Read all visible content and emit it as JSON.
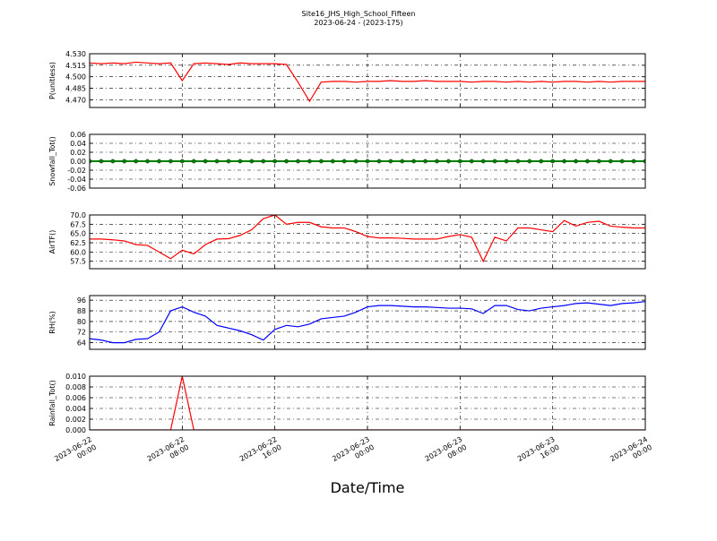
{
  "title": "Site16_JHS_High_School_Fifteen",
  "subtitle": "2023-06-24 - (2023-175)",
  "xlabel": "Date/Time",
  "x": [
    "2023-06-22 00:00",
    "2023-06-22 01:00",
    "2023-06-22 02:00",
    "2023-06-22 03:00",
    "2023-06-22 04:00",
    "2023-06-22 05:00",
    "2023-06-22 06:00",
    "2023-06-22 07:00",
    "2023-06-22 08:00",
    "2023-06-22 09:00",
    "2023-06-22 10:00",
    "2023-06-22 11:00",
    "2023-06-22 12:00",
    "2023-06-22 13:00",
    "2023-06-22 14:00",
    "2023-06-22 15:00",
    "2023-06-22 16:00",
    "2023-06-22 17:00",
    "2023-06-22 18:00",
    "2023-06-22 19:00",
    "2023-06-22 20:00",
    "2023-06-22 21:00",
    "2023-06-22 22:00",
    "2023-06-22 23:00",
    "2023-06-23 00:00",
    "2023-06-23 01:00",
    "2023-06-23 02:00",
    "2023-06-23 03:00",
    "2023-06-23 04:00",
    "2023-06-23 05:00",
    "2023-06-23 06:00",
    "2023-06-23 07:00",
    "2023-06-23 08:00",
    "2023-06-23 09:00",
    "2023-06-23 10:00",
    "2023-06-23 11:00",
    "2023-06-23 12:00",
    "2023-06-23 13:00",
    "2023-06-23 14:00",
    "2023-06-23 15:00",
    "2023-06-23 16:00",
    "2023-06-23 17:00",
    "2023-06-23 18:00",
    "2023-06-23 19:00",
    "2023-06-23 20:00",
    "2023-06-23 21:00",
    "2023-06-23 22:00",
    "2023-06-23 23:00",
    "2023-06-24 00:00"
  ],
  "xlim": [
    "2023-06-22 00:00",
    "2023-06-24 00:00"
  ],
  "xticks": [
    {
      "value": "2023-06-22 00:00",
      "label": [
        "2023-06-22",
        "00:00"
      ]
    },
    {
      "value": "2023-06-22 08:00",
      "label": [
        "2023-06-22",
        "08:00"
      ]
    },
    {
      "value": "2023-06-22 16:00",
      "label": [
        "2023-06-22",
        "16:00"
      ]
    },
    {
      "value": "2023-06-23 00:00",
      "label": [
        "2023-06-23",
        "00:00"
      ]
    },
    {
      "value": "2023-06-23 08:00",
      "label": [
        "2023-06-23",
        "08:00"
      ]
    },
    {
      "value": "2023-06-23 16:00",
      "label": [
        "2023-06-23",
        "16:00"
      ]
    },
    {
      "value": "2023-06-24 00:00",
      "label": [
        "2023-06-24",
        "00:00"
      ]
    }
  ],
  "grid": true,
  "chart_data": [
    {
      "type": "line",
      "ylabel": "P(unitless)",
      "color": "#ff0000",
      "ylim": [
        4.46,
        4.53
      ],
      "yticks": [
        {
          "value": 4.47,
          "label": "4.470"
        },
        4.485,
        {
          "value": 4.5,
          "label": "4.500"
        },
        4.515,
        {
          "value": 4.53,
          "label": "4.530"
        }
      ],
      "values": [
        4.518,
        4.517,
        4.518,
        4.517,
        4.519,
        4.518,
        4.517,
        4.518,
        4.495,
        4.517,
        4.518,
        4.517,
        4.516,
        4.518,
        4.517,
        4.517,
        4.517,
        4.516,
        4.493,
        4.468,
        4.493,
        4.494,
        4.494,
        4.493,
        4.494,
        4.494,
        4.495,
        4.494,
        4.494,
        4.495,
        4.494,
        4.494,
        4.494,
        4.493,
        4.494,
        4.494,
        4.493,
        4.494,
        4.493,
        4.494,
        4.493,
        4.494,
        4.494,
        4.493,
        4.494,
        4.493,
        4.494,
        4.494,
        4.494
      ]
    },
    {
      "type": "line",
      "ylabel": "Snowfall_Tot()",
      "color": "#008000",
      "markers": true,
      "ylim": [
        -0.06,
        0.06
      ],
      "yticks": [
        -0.06,
        -0.04,
        -0.02,
        {
          "value": 0,
          "label": "0.00"
        },
        0.02,
        0.04,
        0.06
      ],
      "values": [
        0,
        0,
        0,
        0,
        0,
        0,
        0,
        0,
        0,
        0,
        0,
        0,
        0,
        0,
        0,
        0,
        0,
        0,
        0,
        0,
        0,
        0,
        0,
        0,
        0,
        0,
        0,
        0,
        0,
        0,
        0,
        0,
        0,
        0,
        0,
        0,
        0,
        0,
        0,
        0,
        0,
        0,
        0,
        0,
        0,
        0,
        0,
        0,
        0
      ]
    },
    {
      "type": "line",
      "ylabel": "AirTF()",
      "color": "#ff0000",
      "ylim": [
        55.5,
        70
      ],
      "yticks": [
        57.5,
        {
          "value": 60,
          "label": "60.0"
        },
        62.5,
        {
          "value": 65,
          "label": "65.0"
        },
        67.5,
        {
          "value": 70,
          "label": "70.0"
        }
      ],
      "values": [
        63.5,
        63.5,
        63.3,
        63,
        62,
        61.8,
        60,
        58.2,
        60.5,
        59.5,
        62,
        63.5,
        63.6,
        64.5,
        66,
        69,
        70,
        67.5,
        68,
        68,
        66.8,
        66.5,
        66.5,
        65.5,
        64.2,
        63.8,
        63.8,
        63.7,
        63.5,
        63.5,
        63.5,
        64.2,
        64.7,
        64,
        57.5,
        64,
        63,
        66.5,
        66.5,
        66,
        65.5,
        68.5,
        67,
        68,
        68.3,
        67,
        66.7,
        66.5,
        66.5
      ]
    },
    {
      "type": "line",
      "ylabel": "RH(%)",
      "color": "#0000ff",
      "ylim": [
        59,
        99.5
      ],
      "yticks": [
        64,
        72,
        80,
        88,
        96
      ],
      "values": [
        67,
        66,
        64,
        64,
        66.5,
        67,
        72,
        88,
        91,
        87,
        84,
        77,
        75,
        73,
        70,
        66,
        74,
        77,
        76,
        78,
        82,
        83,
        84,
        87,
        91,
        92,
        92,
        91.5,
        91,
        91,
        90.5,
        90,
        90,
        89.5,
        86,
        92,
        92,
        89,
        88,
        90,
        91,
        92,
        93.5,
        94,
        93,
        92,
        93.5,
        94,
        95
      ]
    },
    {
      "type": "line",
      "ylabel": "Rainfall_Tot()",
      "color": "#ff0000",
      "ylim": [
        0,
        0.01
      ],
      "yticks": [
        {
          "value": 0,
          "label": "0.000"
        },
        0.002,
        0.004,
        0.006,
        0.008,
        {
          "value": 0.01,
          "label": "0.010"
        }
      ],
      "values": [
        0,
        0,
        0,
        0,
        0,
        0,
        0,
        0,
        0.01,
        0,
        0,
        0,
        0,
        0,
        0,
        0,
        0,
        0,
        0,
        0,
        0,
        0,
        0,
        0,
        0,
        0,
        0,
        0,
        0,
        0,
        0,
        0,
        0,
        0,
        0,
        0,
        0,
        0,
        0,
        0,
        0,
        0,
        0,
        0,
        0,
        0,
        0,
        0,
        0
      ]
    }
  ]
}
